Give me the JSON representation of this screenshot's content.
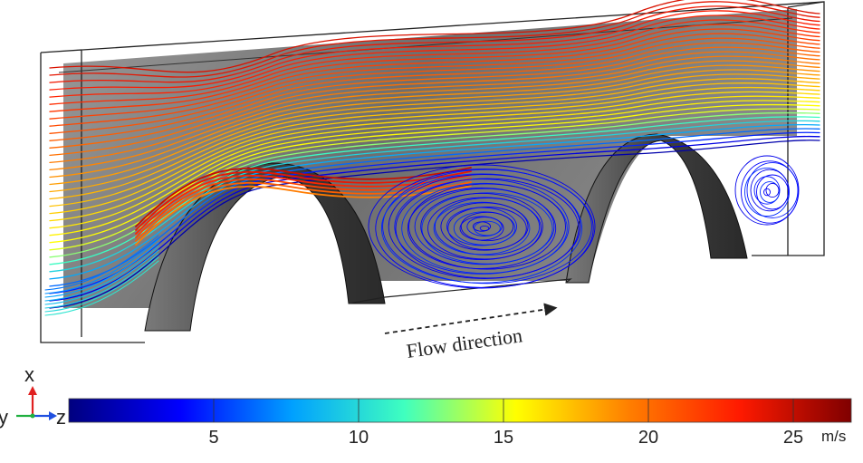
{
  "figure": {
    "flow_label": "Flow direction",
    "triad": {
      "x_label": "x",
      "y_label": "y",
      "z_label": "z"
    },
    "colorbar": {
      "ticks": [
        "5",
        "10",
        "15",
        "20",
        "25"
      ],
      "unit": "m/s",
      "range": [
        0,
        27
      ],
      "colors": [
        "#00007f",
        "#0000ff",
        "#00a0ff",
        "#3fffbf",
        "#ffff00",
        "#ff8000",
        "#ff1a00",
        "#7f0000"
      ]
    }
  }
}
